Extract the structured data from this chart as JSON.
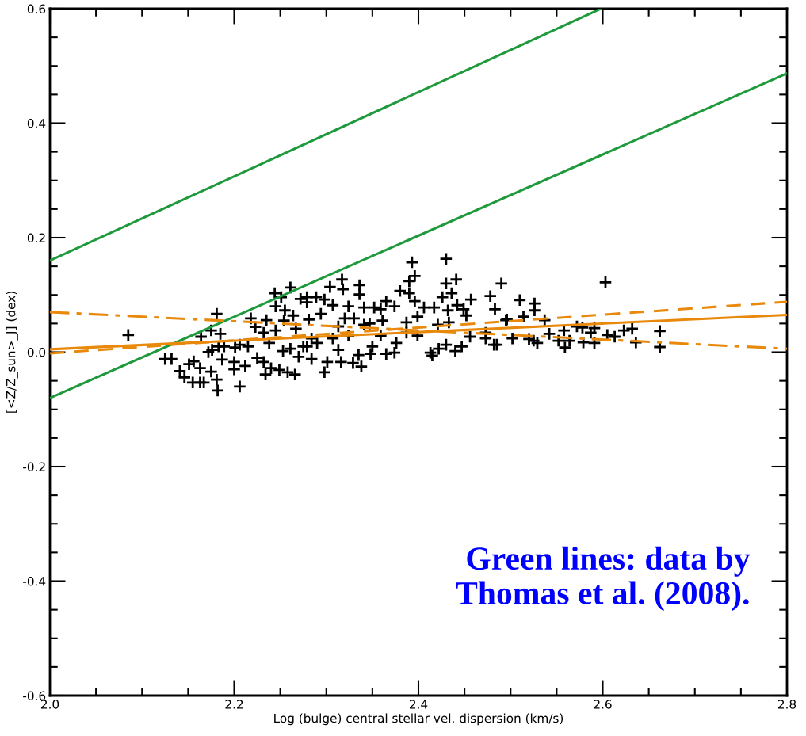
{
  "chart_data": {
    "type": "scatter",
    "xlabel": "Log (bulge) central stellar vel. dispersion (km/s)",
    "ylabel": "[<Z/Z_sun>_J] (dex)",
    "xlim": [
      2.0,
      2.8
    ],
    "ylim": [
      -0.6,
      0.6
    ],
    "xticks": [
      {
        "value": 2,
        "label": "2.0"
      },
      2.2,
      2.4,
      2.6,
      2.8
    ],
    "yticks": [
      -0.6,
      -0.4,
      -0.2,
      {
        "value": 0,
        "label": "0.0"
      },
      0.2,
      0.4,
      0.6
    ],
    "grid": false,
    "legend": false,
    "annotations": [
      "Green lines: data by\nThomas et al. (2008)."
    ],
    "series": [
      {
        "color": "#000000",
        "marker": "cross",
        "x": [
          2.085,
          2.125,
          2.132,
          2.181,
          2.141,
          2.151,
          2.156,
          2.146,
          2.155,
          2.163,
          2.167,
          2.175,
          2.163,
          2.182,
          2.181,
          2.206,
          2.164,
          2.175,
          2.185,
          2.172,
          2.176,
          2.183,
          2.189,
          2.187,
          2.201,
          2.206,
          2.2,
          2.2,
          2.212,
          2.215,
          2.218,
          2.223,
          2.235,
          2.232,
          2.244,
          2.251,
          2.245,
          2.261,
          2.255,
          2.264,
          2.254,
          2.272,
          2.279,
          2.267,
          2.245,
          2.238,
          2.232,
          2.24,
          2.234,
          2.249,
          2.258,
          2.266,
          2.253,
          2.261,
          2.27,
          2.275,
          2.225,
          2.393,
          2.43,
          2.396,
          2.39,
          2.317,
          2.304,
          2.336,
          2.336,
          2.318,
          2.279,
          2.289,
          2.298,
          2.307,
          2.294,
          2.38,
          2.39,
          2.396,
          2.43,
          2.441,
          2.436,
          2.426,
          2.49,
          2.478,
          2.483,
          2.457,
          2.526,
          2.51,
          2.324,
          2.341,
          2.352,
          2.365,
          2.359,
          2.374,
          2.406,
          2.417,
          2.432,
          2.442,
          2.449,
          2.452,
          2.341,
          2.33,
          2.361,
          2.387,
          2.399,
          2.421,
          2.433,
          2.32,
          2.281,
          2.298,
          2.338,
          2.329,
          2.301,
          2.284,
          2.348,
          2.335,
          2.316,
          2.365,
          2.374,
          2.413,
          2.415,
          2.422,
          2.44,
          2.43,
          2.447,
          2.485,
          2.502,
          2.52,
          2.525,
          2.496,
          2.514,
          2.284,
          2.29,
          2.307,
          2.324,
          2.359,
          2.387,
          2.399,
          2.456,
          2.473,
          2.279,
          2.313,
          2.35,
          2.376,
          2.347,
          2.313,
          2.603,
          2.526,
          2.495,
          2.537,
          2.529,
          2.542,
          2.552,
          2.558,
          2.559,
          2.564,
          2.572,
          2.578,
          2.587,
          2.579,
          2.591,
          2.591,
          2.605,
          2.613,
          2.623,
          2.632,
          2.636,
          2.662,
          2.662,
          2.473,
          2.482
        ],
        "values": [
          0.03,
          -0.012,
          -0.012,
          0.067,
          -0.033,
          -0.021,
          -0.016,
          -0.044,
          -0.053,
          -0.053,
          -0.053,
          -0.034,
          -0.028,
          -0.067,
          -0.048,
          -0.06,
          0.027,
          0.038,
          0.032,
          0.0,
          0.004,
          0.01,
          0.01,
          -0.013,
          0.008,
          0.013,
          -0.017,
          -0.03,
          -0.024,
          0.01,
          0.059,
          0.044,
          0.056,
          0.034,
          0.103,
          0.096,
          0.08,
          0.113,
          0.073,
          0.064,
          0.055,
          0.093,
          0.087,
          0.041,
          0.038,
          0.016,
          -0.017,
          -0.028,
          -0.039,
          -0.031,
          -0.035,
          -0.039,
          0.002,
          0.006,
          -0.008,
          0.01,
          -0.01,
          0.157,
          0.163,
          0.133,
          0.124,
          0.127,
          0.114,
          0.117,
          0.101,
          0.11,
          0.096,
          0.096,
          0.092,
          0.082,
          0.067,
          0.107,
          0.103,
          0.089,
          0.12,
          0.127,
          0.103,
          0.096,
          0.12,
          0.098,
          0.075,
          0.092,
          0.085,
          0.091,
          0.08,
          0.078,
          0.078,
          0.089,
          0.075,
          0.08,
          0.078,
          0.078,
          0.073,
          0.082,
          0.075,
          0.064,
          0.048,
          0.059,
          0.055,
          0.052,
          0.062,
          0.048,
          0.052,
          0.059,
          0.057,
          -0.035,
          -0.025,
          -0.019,
          -0.017,
          -0.012,
          -0.003,
          -0.005,
          -0.017,
          -0.003,
          -0.001,
          -0.001,
          -0.006,
          0.006,
          0.002,
          0.013,
          0.01,
          0.013,
          0.024,
          0.023,
          0.02,
          0.057,
          0.062,
          0.024,
          0.016,
          0.024,
          0.029,
          0.029,
          0.034,
          0.029,
          0.027,
          0.034,
          0.01,
          0.004,
          0.01,
          0.016,
          0.05,
          0.045,
          0.122,
          0.073,
          0.056,
          0.056,
          0.016,
          0.032,
          0.02,
          0.038,
          0.008,
          0.02,
          0.045,
          0.043,
          0.034,
          0.017,
          0.016,
          0.042,
          0.03,
          0.027,
          0.038,
          0.041,
          0.017,
          0.037,
          0.009,
          0.024,
          0.013
        ]
      },
      {
        "type": "line",
        "color": "#1e9a3c",
        "line_style": "solid",
        "x": [
          2.0,
          2.598
        ],
        "values": [
          0.16,
          0.6
        ]
      },
      {
        "type": "line",
        "color": "#1e9a3c",
        "line_style": "solid",
        "x": [
          2.0,
          2.8
        ],
        "values": [
          -0.08,
          0.487
        ]
      },
      {
        "type": "line",
        "color": "#e8890c",
        "line_style": "solid",
        "x": [
          2.0,
          2.8
        ],
        "values": [
          0.005,
          0.065
        ]
      },
      {
        "type": "line",
        "color": "#e8890c",
        "line_style": "dashed",
        "x": [
          2.0,
          2.8
        ],
        "values": [
          -0.002,
          0.088
        ]
      },
      {
        "type": "line",
        "color": "#e8890c",
        "line_style": "dashdot",
        "x": [
          2.0,
          2.8
        ],
        "values": [
          0.07,
          0.006
        ]
      }
    ]
  }
}
